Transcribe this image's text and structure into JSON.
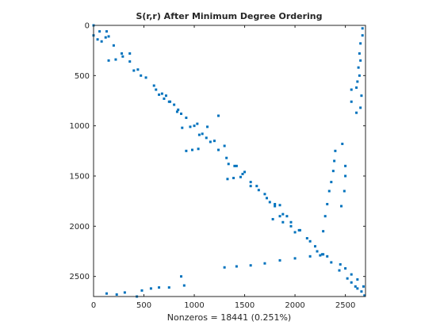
{
  "chart_data": {
    "type": "scatter",
    "title": "S(r,r) After Minimum Degree Ordering",
    "xlabel": "Nonzeros = 18441 (0.251%)",
    "ylabel": "",
    "xlim": [
      0,
      2700
    ],
    "ylim": [
      0,
      2700
    ],
    "y_reversed": true,
    "x_ticks": [
      0,
      500,
      1000,
      1500,
      2000,
      2500
    ],
    "y_ticks": [
      0,
      500,
      1000,
      1500,
      2000,
      2500
    ],
    "x_tick_labels": [
      "0",
      "500",
      "1000",
      "1500",
      "2000",
      "2500"
    ],
    "y_tick_labels": [
      "0",
      "500",
      "1000",
      "1500",
      "2000",
      "2500"
    ],
    "grid": false,
    "marker_color": "#0072BD",
    "series": [
      {
        "values": [
          [
            0,
            0
          ],
          [
            60,
            60
          ],
          [
            120,
            120
          ],
          [
            200,
            200
          ],
          [
            280,
            280
          ],
          [
            360,
            360
          ],
          [
            440,
            440
          ],
          [
            520,
            520
          ],
          [
            600,
            600
          ],
          [
            680,
            680
          ],
          [
            760,
            760
          ],
          [
            840,
            840
          ],
          [
            920,
            920
          ],
          [
            1000,
            1000
          ],
          [
            1080,
            1080
          ],
          [
            1160,
            1160
          ],
          [
            1240,
            1240
          ],
          [
            1320,
            1320
          ],
          [
            1400,
            1400
          ],
          [
            1480,
            1480
          ],
          [
            1560,
            1560
          ],
          [
            1640,
            1640
          ],
          [
            1720,
            1720
          ],
          [
            1800,
            1800
          ],
          [
            1880,
            1880
          ],
          [
            1960,
            1960
          ],
          [
            2040,
            2040
          ],
          [
            2120,
            2120
          ],
          [
            2200,
            2200
          ],
          [
            2280,
            2280
          ],
          [
            2360,
            2360
          ],
          [
            2440,
            2440
          ],
          [
            2520,
            2520
          ],
          [
            2600,
            2600
          ],
          [
            2690,
            2690
          ],
          [
            0,
            100
          ],
          [
            40,
            140
          ],
          [
            80,
            160
          ],
          [
            130,
            60
          ],
          [
            150,
            110
          ],
          [
            150,
            350
          ],
          [
            220,
            340
          ],
          [
            290,
            310
          ],
          [
            360,
            280
          ],
          [
            400,
            450
          ],
          [
            470,
            500
          ],
          [
            620,
            640
          ],
          [
            650,
            690
          ],
          [
            720,
            700
          ],
          [
            700,
            730
          ],
          [
            750,
            760
          ],
          [
            800,
            790
          ],
          [
            830,
            860
          ],
          [
            870,
            880
          ],
          [
            880,
            1020
          ],
          [
            960,
            1010
          ],
          [
            1030,
            980
          ],
          [
            1130,
            1010
          ],
          [
            1240,
            900
          ],
          [
            1050,
            1090
          ],
          [
            1120,
            1120
          ],
          [
            1200,
            1150
          ],
          [
            920,
            1250
          ],
          [
            980,
            1240
          ],
          [
            1040,
            1230
          ],
          [
            1300,
            1200
          ],
          [
            1340,
            1380
          ],
          [
            1420,
            1400
          ],
          [
            1480,
            1480
          ],
          [
            1500,
            1460
          ],
          [
            1330,
            1530
          ],
          [
            1390,
            1520
          ],
          [
            1460,
            1510
          ],
          [
            1560,
            1600
          ],
          [
            1620,
            1600
          ],
          [
            1700,
            1680
          ],
          [
            1750,
            1760
          ],
          [
            1800,
            1780
          ],
          [
            1850,
            1790
          ],
          [
            1880,
            1960
          ],
          [
            1920,
            1900
          ],
          [
            1960,
            2000
          ],
          [
            2000,
            2060
          ],
          [
            2050,
            2040
          ],
          [
            1780,
            1930
          ],
          [
            1850,
            1900
          ],
          [
            2150,
            2150
          ],
          [
            2220,
            2250
          ],
          [
            2270,
            2280
          ],
          [
            2320,
            2300
          ],
          [
            2280,
            2050
          ],
          [
            2300,
            1900
          ],
          [
            2320,
            1780
          ],
          [
            2340,
            1650
          ],
          [
            2360,
            1560
          ],
          [
            2380,
            1450
          ],
          [
            2390,
            1350
          ],
          [
            2400,
            1250
          ],
          [
            2460,
            1800
          ],
          [
            2490,
            1650
          ],
          [
            2500,
            1500
          ],
          [
            2500,
            1400
          ],
          [
            2470,
            1180
          ],
          [
            2450,
            2380
          ],
          [
            2500,
            2420
          ],
          [
            2560,
            2480
          ],
          [
            2620,
            2530
          ],
          [
            2680,
            2600
          ],
          [
            2560,
            2560
          ],
          [
            2620,
            2620
          ],
          [
            2660,
            2650
          ],
          [
            1300,
            2410
          ],
          [
            1420,
            2400
          ],
          [
            1560,
            2390
          ],
          [
            1700,
            2370
          ],
          [
            1850,
            2340
          ],
          [
            2000,
            2320
          ],
          [
            2150,
            2300
          ],
          [
            2250,
            2290
          ],
          [
            130,
            2670
          ],
          [
            230,
            2680
          ],
          [
            310,
            2660
          ],
          [
            430,
            2700
          ],
          [
            480,
            2640
          ],
          [
            570,
            2620
          ],
          [
            650,
            2610
          ],
          [
            750,
            2610
          ],
          [
            870,
            2500
          ],
          [
            900,
            2590
          ],
          [
            2670,
            30
          ],
          [
            2670,
            100
          ],
          [
            2650,
            180
          ],
          [
            2640,
            280
          ],
          [
            2650,
            350
          ],
          [
            2630,
            420
          ],
          [
            2640,
            500
          ],
          [
            2620,
            560
          ],
          [
            2610,
            620
          ],
          [
            2660,
            700
          ],
          [
            2650,
            820
          ],
          [
            2610,
            870
          ],
          [
            2560,
            760
          ],
          [
            2560,
            640
          ]
        ]
      }
    ]
  }
}
